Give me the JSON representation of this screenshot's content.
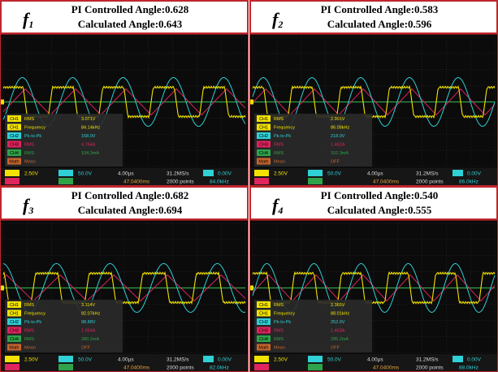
{
  "channel_colors": {
    "CH1": "#f2e200",
    "CH2": "#2fd0d6",
    "CH3": "#e0245e",
    "CH4": "#2fa34a",
    "Math": "#c8662e"
  },
  "panels": [
    {
      "label": "f",
      "subscript": "1",
      "pi_line": "PI Controlled Angle:0.628",
      "calc_line": "Calculated Angle:0.643",
      "measurements": [
        {
          "channel": "CH1",
          "name": "RMS",
          "value": "3.071V"
        },
        {
          "channel": "CH1",
          "name": "Frequency",
          "value": "84.14kHz"
        },
        {
          "channel": "CH2",
          "name": "Pk-to-Pk",
          "value": "158.0V"
        },
        {
          "channel": "CH3",
          "name": "RMS",
          "value": "4.764A"
        },
        {
          "channel": "CH4",
          "name": "RMS",
          "value": "104.3mA"
        },
        {
          "channel": "Math",
          "name": "Mean"
        }
      ],
      "status": {
        "ch1_scale": "2.50V",
        "ch2_scale": "50.0V",
        "timebase": "4.00µs",
        "sample_rate": "31.2MS/s",
        "trigger": "0.00V",
        "position": "47.0400ms",
        "points": "2000 points",
        "trigger_freq": "84.0kHz"
      }
    },
    {
      "label": "f",
      "subscript": "2",
      "pi_line": "PI Controlled Angle:0.583",
      "calc_line": "Calculated Angle:0.596",
      "measurements": [
        {
          "channel": "CH1",
          "name": "RMS",
          "value": "2.901V"
        },
        {
          "channel": "CH1",
          "name": "Frequency",
          "value": "86.08kHz"
        },
        {
          "channel": "CH2",
          "name": "Pk-to-Pk",
          "value": "218.0V"
        },
        {
          "channel": "CH3",
          "name": "RMS",
          "value": "1.462A"
        },
        {
          "channel": "CH4",
          "name": "RMS",
          "value": "152.3mA"
        },
        {
          "channel": "Math",
          "name": "Mean",
          "value": "OFF"
        }
      ],
      "status": {
        "ch1_scale": "2.50V",
        "ch2_scale": "50.0V",
        "timebase": "4.00µs",
        "sample_rate": "31.2MS/s",
        "trigger": "0.00V",
        "position": "47.0400ms",
        "points": "2000 points",
        "trigger_freq": "86.0kHz"
      }
    },
    {
      "label": "f",
      "subscript": "3",
      "pi_line": "PI Controlled Angle:0.682",
      "calc_line": "Calculated Angle:0.694",
      "measurements": [
        {
          "channel": "CH1",
          "name": "RMS",
          "value": "3.114V"
        },
        {
          "channel": "CH1",
          "name": "Frequency",
          "value": "82.07kHz"
        },
        {
          "channel": "CH2",
          "name": "Pk-to-Pk",
          "value": "98.88V"
        },
        {
          "channel": "CH3",
          "name": "RMS",
          "value": "1.934A"
        },
        {
          "channel": "CH4",
          "name": "RMS",
          "value": "280.2mA"
        },
        {
          "channel": "Math",
          "name": "Mean",
          "value": "OFF"
        }
      ],
      "status": {
        "ch1_scale": "2.50V",
        "ch2_scale": "50.0V",
        "timebase": "4.00µs",
        "sample_rate": "31.2MS/s",
        "trigger": "0.00V",
        "position": "47.0400ms",
        "points": "2000 points",
        "trigger_freq": "82.0kHz"
      }
    },
    {
      "label": "f",
      "subscript": "4",
      "pi_line": "PI Controlled Angle:0.540",
      "calc_line": "Calculated Angle:0.555",
      "measurements": [
        {
          "channel": "CH1",
          "name": "RMS",
          "value": "2.365V"
        },
        {
          "channel": "CH1",
          "name": "Frequency",
          "value": "88.01kHz"
        },
        {
          "channel": "CH2",
          "name": "Pk-to-Pk",
          "value": "252.0V"
        },
        {
          "channel": "CH3",
          "name": "RMS",
          "value": "1.463A"
        },
        {
          "channel": "CH4",
          "name": "RMS",
          "value": "285.2mA"
        },
        {
          "channel": "Math",
          "name": "Mean",
          "value": "OFF"
        }
      ],
      "status": {
        "ch1_scale": "2.50V",
        "ch2_scale": "50.0V",
        "timebase": "4.00µs",
        "sample_rate": "31.2MS/s",
        "trigger": "0.00V",
        "position": "47.0400ms",
        "points": "2000 points",
        "trigger_freq": "88.0kHz"
      }
    }
  ]
}
